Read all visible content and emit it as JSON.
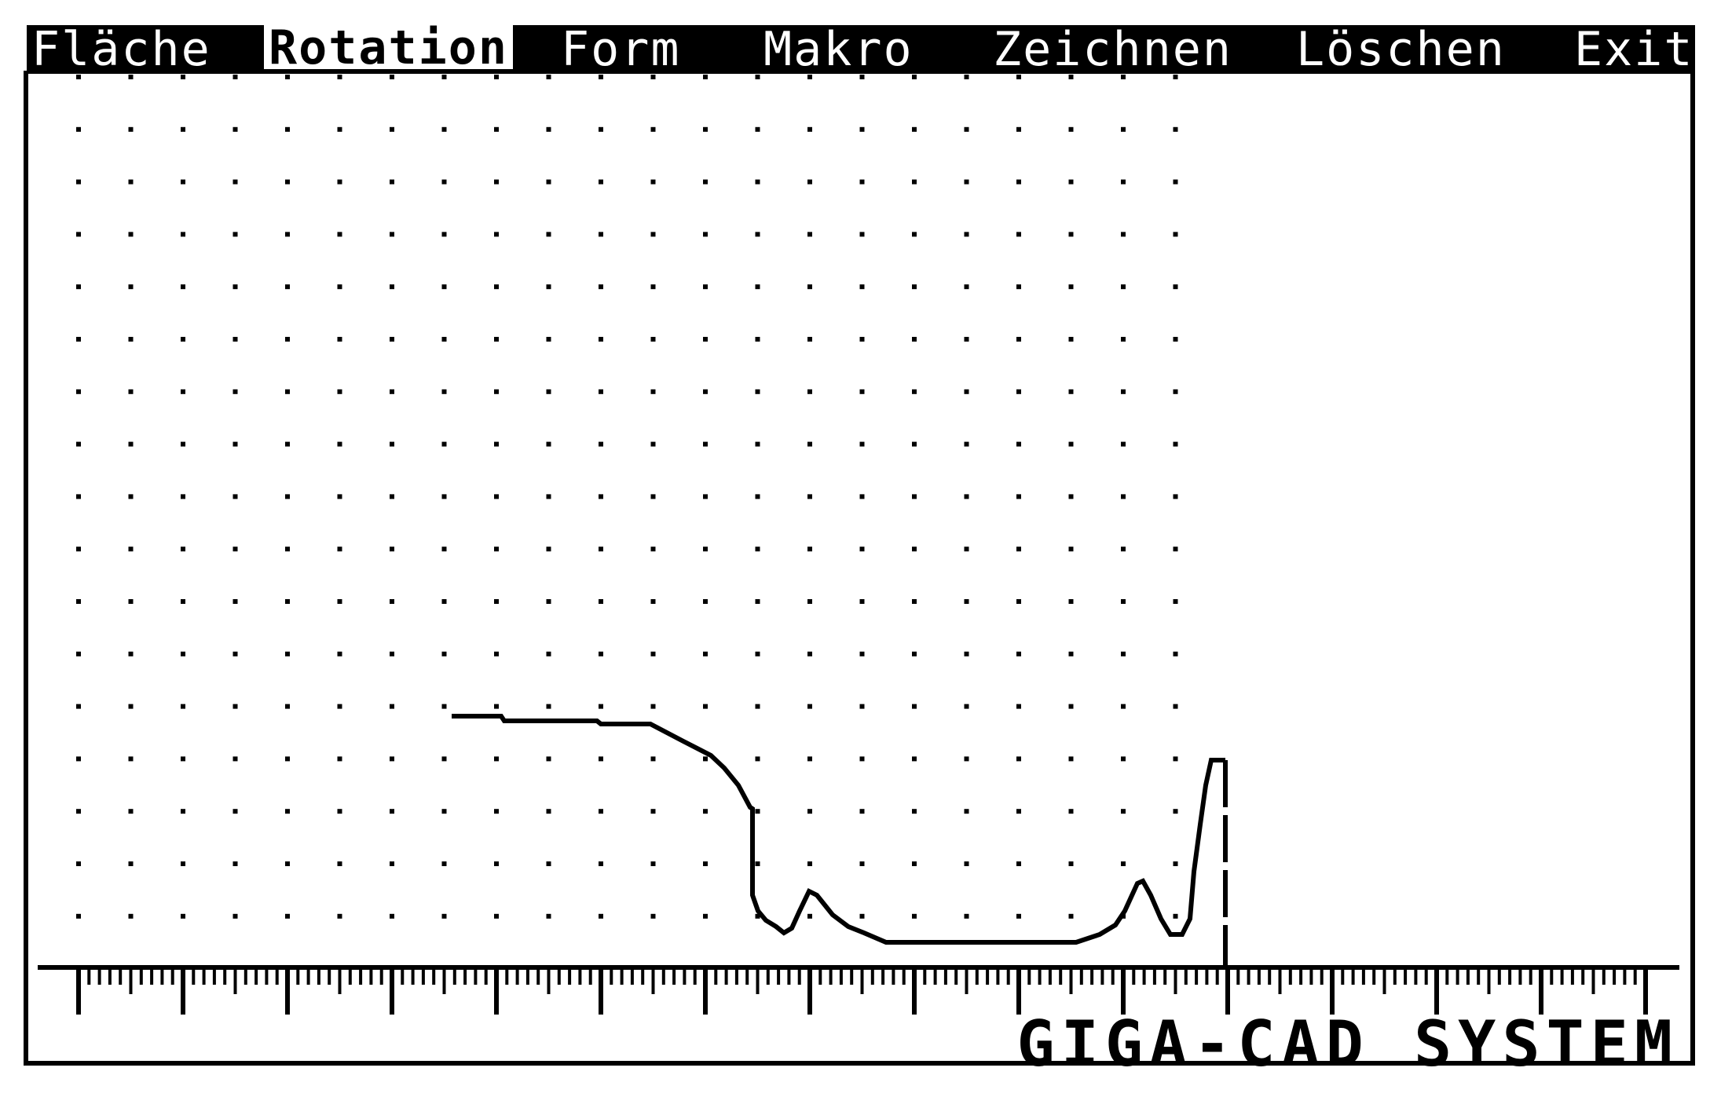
{
  "menu": {
    "items": [
      {
        "label": "Fläche"
      },
      {
        "label": "Rotation"
      },
      {
        "label": "Form"
      },
      {
        "label": "Makro"
      },
      {
        "label": "Zeichnen"
      },
      {
        "label": "Löschen"
      },
      {
        "label": "Exit"
      }
    ],
    "active_item": "Rotation"
  },
  "brand": {
    "label": "GIGA-CAD SYSTEM"
  },
  "colors": {
    "foreground": "#000000",
    "background": "#ffffff"
  },
  "canvas": {
    "grid": "dotted",
    "ruler": "bottom",
    "drawing": "rotation profile polyline with vertical axis marker"
  }
}
